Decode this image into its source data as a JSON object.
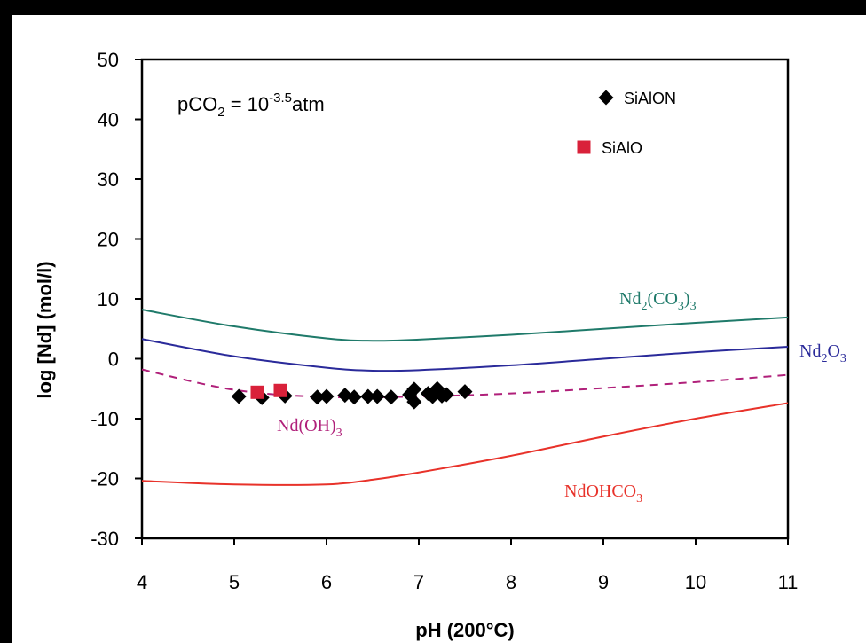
{
  "chart_data": {
    "type": "scatter",
    "xlabel": "pH (200°C)",
    "ylabel": "log [Nd] (mol/l)",
    "xlim": [
      4,
      11
    ],
    "ylim": [
      -30,
      50
    ],
    "xticks": [
      "4",
      "5",
      "6",
      "7",
      "8",
      "9",
      "10",
      "11"
    ],
    "yticks": [
      "-30",
      "-20",
      "-10",
      "0",
      "10",
      "20",
      "30",
      "40",
      "50"
    ],
    "annotation": {
      "main": "pCO",
      "sub": "2",
      "eq": " = 10",
      "sup": "-3.5",
      "unit": "atm"
    },
    "legend": [
      {
        "label": "SiAlON",
        "marker": "diamond",
        "color": "#000000"
      },
      {
        "label": "SiAlO",
        "marker": "square",
        "color": "#d9213a"
      }
    ],
    "curves": [
      {
        "name": "Nd2(CO3)3",
        "label_parts": [
          "Nd",
          "2",
          "(CO",
          "3",
          ")",
          "3"
        ],
        "color": "#1f7a6a",
        "style": "solid",
        "x": [
          4,
          5,
          6,
          6.5,
          7,
          8,
          9,
          10,
          11
        ],
        "y": [
          8.2,
          5.4,
          3.4,
          3.0,
          3.2,
          4.0,
          5.0,
          6.0,
          6.9
        ]
      },
      {
        "name": "Nd2O3",
        "label_parts": [
          "Nd",
          "2",
          "O",
          "3"
        ],
        "color": "#2a2a9a",
        "style": "solid",
        "x": [
          4,
          5,
          6,
          6.5,
          7,
          8,
          9,
          10,
          11
        ],
        "y": [
          3.3,
          0.4,
          -1.5,
          -2.0,
          -1.9,
          -1.1,
          0.0,
          1.1,
          2.0
        ]
      },
      {
        "name": "Nd(OH)3",
        "label_parts": [
          "Nd(OH)",
          "3"
        ],
        "color": "#b0207a",
        "style": "dashed",
        "x": [
          4,
          5,
          6,
          7,
          8,
          9,
          10,
          11
        ],
        "y": [
          -1.8,
          -5.2,
          -6.4,
          -6.3,
          -5.8,
          -4.9,
          -3.9,
          -2.7
        ]
      },
      {
        "name": "NdOHCO3",
        "label_parts": [
          "NdOHCO",
          "3"
        ],
        "color": "#e8322a",
        "style": "solid",
        "x": [
          4,
          5,
          6,
          6.5,
          7,
          8,
          9,
          10,
          11
        ],
        "y": [
          -20.4,
          -21.0,
          -21.0,
          -20.2,
          -19.0,
          -16.2,
          -13.0,
          -10.0,
          -7.4
        ]
      }
    ],
    "series": [
      {
        "name": "SiAlON",
        "marker": "diamond",
        "color": "#000000",
        "x": [
          5.05,
          5.3,
          5.55,
          5.9,
          6.0,
          6.2,
          6.3,
          6.45,
          6.55,
          6.7,
          6.9,
          6.95,
          6.95,
          7.1,
          7.15,
          7.2,
          7.25,
          7.3,
          7.5
        ],
        "y": [
          -6.3,
          -6.5,
          -6.2,
          -6.4,
          -6.3,
          -6.1,
          -6.4,
          -6.3,
          -6.3,
          -6.4,
          -6.0,
          -7.2,
          -5.1,
          -5.8,
          -6.3,
          -5.0,
          -6.2,
          -6.0,
          -5.5
        ]
      },
      {
        "name": "SiAlO",
        "marker": "square",
        "color": "#d9213a",
        "x": [
          5.25,
          5.5
        ],
        "y": [
          -5.6,
          -5.3
        ]
      }
    ]
  }
}
